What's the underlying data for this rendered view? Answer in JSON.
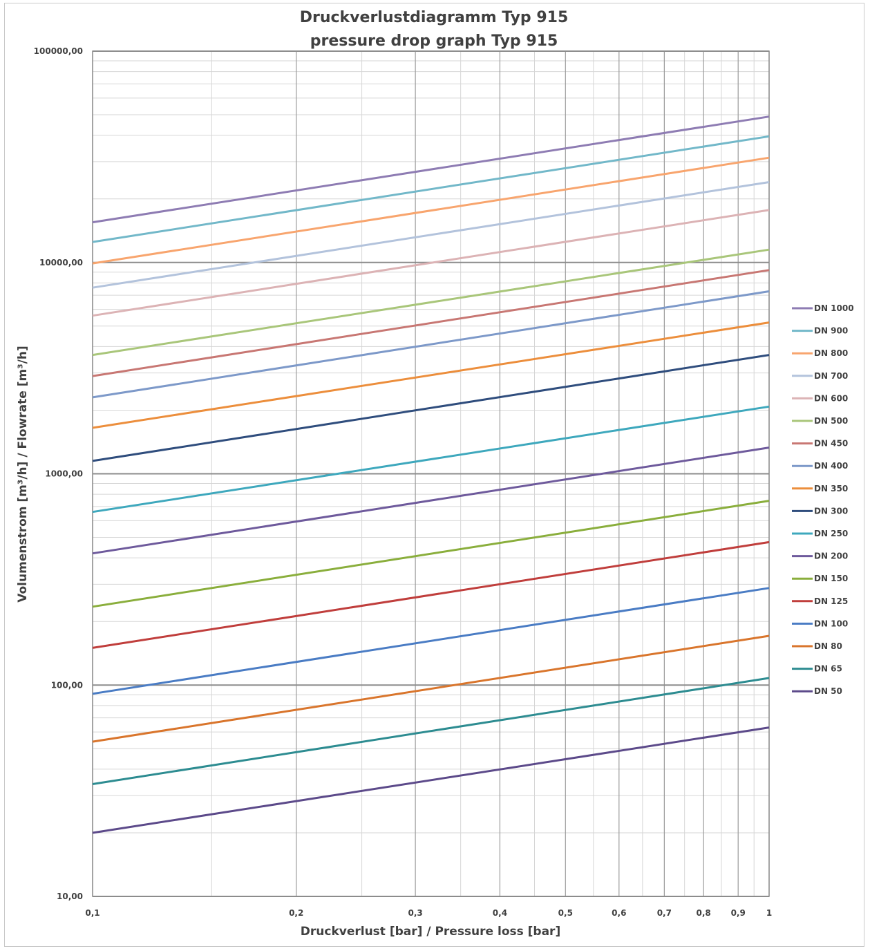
{
  "chart_data": {
    "type": "line",
    "title": [
      "Druckverlustdiagramm Typ 915",
      "pressure drop graph Typ 915"
    ],
    "xlabel": "Druckverlust [bar] / Pressure loss [bar]",
    "ylabel": "Volumenstrom [m³/h] / Flowrate [m³/h]",
    "x_scale": "log",
    "y_scale": "log",
    "xlim": [
      0.1,
      1
    ],
    "ylim": [
      10,
      100000
    ],
    "x_ticks": [
      0.1,
      0.2,
      0.3,
      0.4,
      0.5,
      0.6,
      0.7,
      0.8,
      0.9,
      1
    ],
    "x_tick_labels": [
      "0,1",
      "0,2",
      "0,3",
      "0,4",
      "0,5",
      "0,6",
      "0,7",
      "0,8",
      "0,9",
      "1"
    ],
    "y_ticks": [
      10,
      100,
      1000,
      10000,
      100000
    ],
    "y_tick_labels": [
      "10,00",
      "100,00",
      "1000,00",
      "10000,00",
      "100000,00"
    ],
    "grid": true,
    "legend_position": "right",
    "x": [
      0.1,
      1
    ],
    "series": [
      {
        "name": "DN 1000",
        "color": "#8e7cb3",
        "values": [
          15500,
          49000
        ]
      },
      {
        "name": "DN 900",
        "color": "#72b8c9",
        "values": [
          12500,
          39500
        ]
      },
      {
        "name": "DN 800",
        "color": "#f8a56e",
        "values": [
          9900,
          31300
        ]
      },
      {
        "name": "DN 700",
        "color": "#b3c3dc",
        "values": [
          7600,
          24000
        ]
      },
      {
        "name": "DN 600",
        "color": "#dcb3b5",
        "values": [
          5600,
          17700
        ]
      },
      {
        "name": "DN 500",
        "color": "#a9c67a",
        "values": [
          3650,
          11500
        ]
      },
      {
        "name": "DN 450",
        "color": "#c87773",
        "values": [
          2900,
          9200
        ]
      },
      {
        "name": "DN 400",
        "color": "#7d99c9",
        "values": [
          2300,
          7300
        ]
      },
      {
        "name": "DN 350",
        "color": "#ec8e3c",
        "values": [
          1650,
          5200
        ]
      },
      {
        "name": "DN 300",
        "color": "#2f4d7d",
        "values": [
          1150,
          3650
        ]
      },
      {
        "name": "DN 250",
        "color": "#3ea8bd",
        "values": [
          660,
          2080
        ]
      },
      {
        "name": "DN 200",
        "color": "#6e5a9c",
        "values": [
          420,
          1330
        ]
      },
      {
        "name": "DN 150",
        "color": "#8aae3c",
        "values": [
          235,
          745
        ]
      },
      {
        "name": "DN 125",
        "color": "#c03e3c",
        "values": [
          150,
          475
        ]
      },
      {
        "name": "DN 100",
        "color": "#4a7cc4",
        "values": [
          91,
          288
        ]
      },
      {
        "name": "DN 80",
        "color": "#d9752c",
        "values": [
          54,
          171
        ]
      },
      {
        "name": "DN 65",
        "color": "#2d8c91",
        "values": [
          34,
          108
        ]
      },
      {
        "name": "DN 50",
        "color": "#5c4a8a",
        "values": [
          20,
          63
        ]
      }
    ]
  }
}
